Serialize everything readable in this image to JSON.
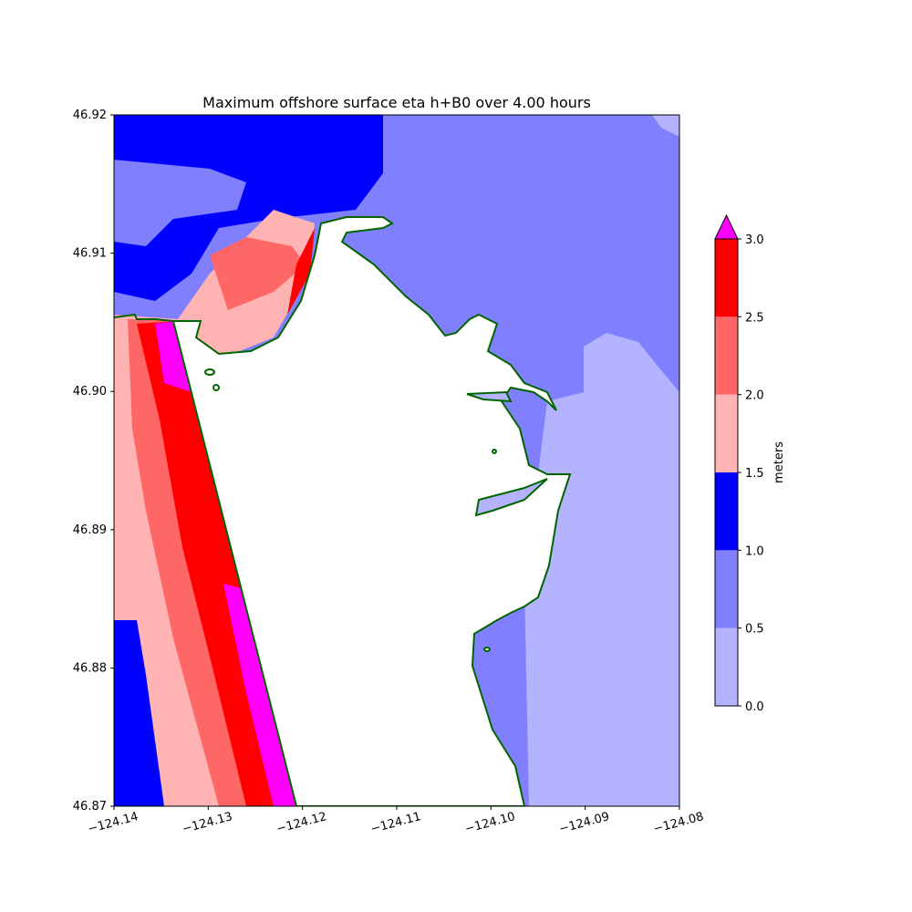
{
  "chart_data": {
    "type": "heatmap",
    "title": "Maximum offshore surface eta h+B0 over 4.00 hours",
    "xlabel": "",
    "ylabel": "",
    "xlim": [
      -124.14,
      -124.08
    ],
    "ylim": [
      46.87,
      46.92
    ],
    "x_ticks": [
      "−124.14",
      "−124.13",
      "−124.12",
      "−124.11",
      "−124.10",
      "−124.09",
      "−124.08"
    ],
    "y_ticks": [
      "46.92",
      "46.91",
      "46.90",
      "46.89",
      "46.88",
      "46.87"
    ],
    "x_tick_values": [
      -124.14,
      -124.13,
      -124.12,
      -124.11,
      -124.1,
      -124.09,
      -124.08
    ],
    "y_tick_values": [
      46.92,
      46.91,
      46.9,
      46.89,
      46.88,
      46.87
    ],
    "colorbar": {
      "label": "meters",
      "bounds": [
        0.0,
        0.5,
        1.0,
        1.5,
        2.0,
        2.5,
        3.0
      ],
      "tick_labels": [
        "0.0",
        "0.5",
        "1.0",
        "1.5",
        "2.0",
        "2.5",
        "3.0"
      ],
      "colors": [
        "#b3b3ff",
        "#8080ff",
        "#0000ff",
        "#ffb3b3",
        "#ff6666",
        "#ff0000"
      ],
      "extend_max_color": "#ff00ff"
    },
    "land_color": "#ffffff",
    "shoreline_color": "#006400"
  }
}
